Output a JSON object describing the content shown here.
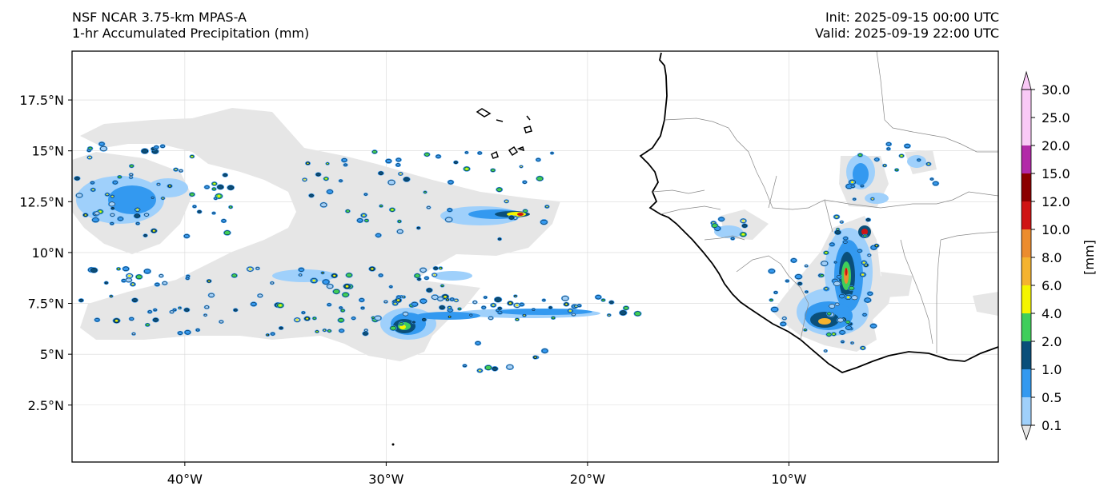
{
  "header": {
    "model": "NSF NCAR 3.75-km MPAS-A",
    "field": "1-hr Accumulated Precipitation (mm)",
    "init": "Init: 2025-09-15 00:00 UTC",
    "valid": "Valid: 2025-09-19 22:00 UTC"
  },
  "map": {
    "projection": "PlateCarree",
    "lon_range": [
      -45.6,
      0.4
    ],
    "lat_range": [
      -0.3,
      19.9
    ],
    "lon_ticks": [
      {
        "value": -40,
        "label": "40°W"
      },
      {
        "value": -30,
        "label": "30°W"
      },
      {
        "value": -20,
        "label": "20°W"
      },
      {
        "value": -10,
        "label": "10°W"
      }
    ],
    "lat_ticks": [
      {
        "value": 2.5,
        "label": "2.5°N"
      },
      {
        "value": 5,
        "label": "5°N"
      },
      {
        "value": 7.5,
        "label": "7.5°N"
      },
      {
        "value": 10,
        "label": "10°N"
      },
      {
        "value": 12.5,
        "label": "12.5°N"
      },
      {
        "value": 15,
        "label": "15°N"
      },
      {
        "value": 17.5,
        "label": "17.5°N"
      }
    ],
    "gridlines": true,
    "features": [
      "coastline",
      "country-borders",
      "cape-verde-islands"
    ]
  },
  "colorbar": {
    "label": "[mm]",
    "extend": "both",
    "levels": [
      {
        "label": "0.1",
        "color": "#e6e6e6"
      },
      {
        "label": "0.5",
        "color": "#9fd0fb"
      },
      {
        "label": "1.0",
        "color": "#3399f0"
      },
      {
        "label": "2.0",
        "color": "#0a4f7a"
      },
      {
        "label": "4.0",
        "color": "#3fce5b"
      },
      {
        "label": "6.0",
        "color": "#f5f500"
      },
      {
        "label": "8.0",
        "color": "#f5b32f"
      },
      {
        "label": "10.0",
        "color": "#ec8c2e"
      },
      {
        "label": "12.0",
        "color": "#cf1313"
      },
      {
        "label": "15.0",
        "color": "#8b0000"
      },
      {
        "label": "20.0",
        "color": "#b22aa8"
      },
      {
        "label": "25.0",
        "color": "#f9c9f6"
      },
      {
        "label": "30.0",
        "color": "#f9c9f6"
      }
    ]
  }
}
